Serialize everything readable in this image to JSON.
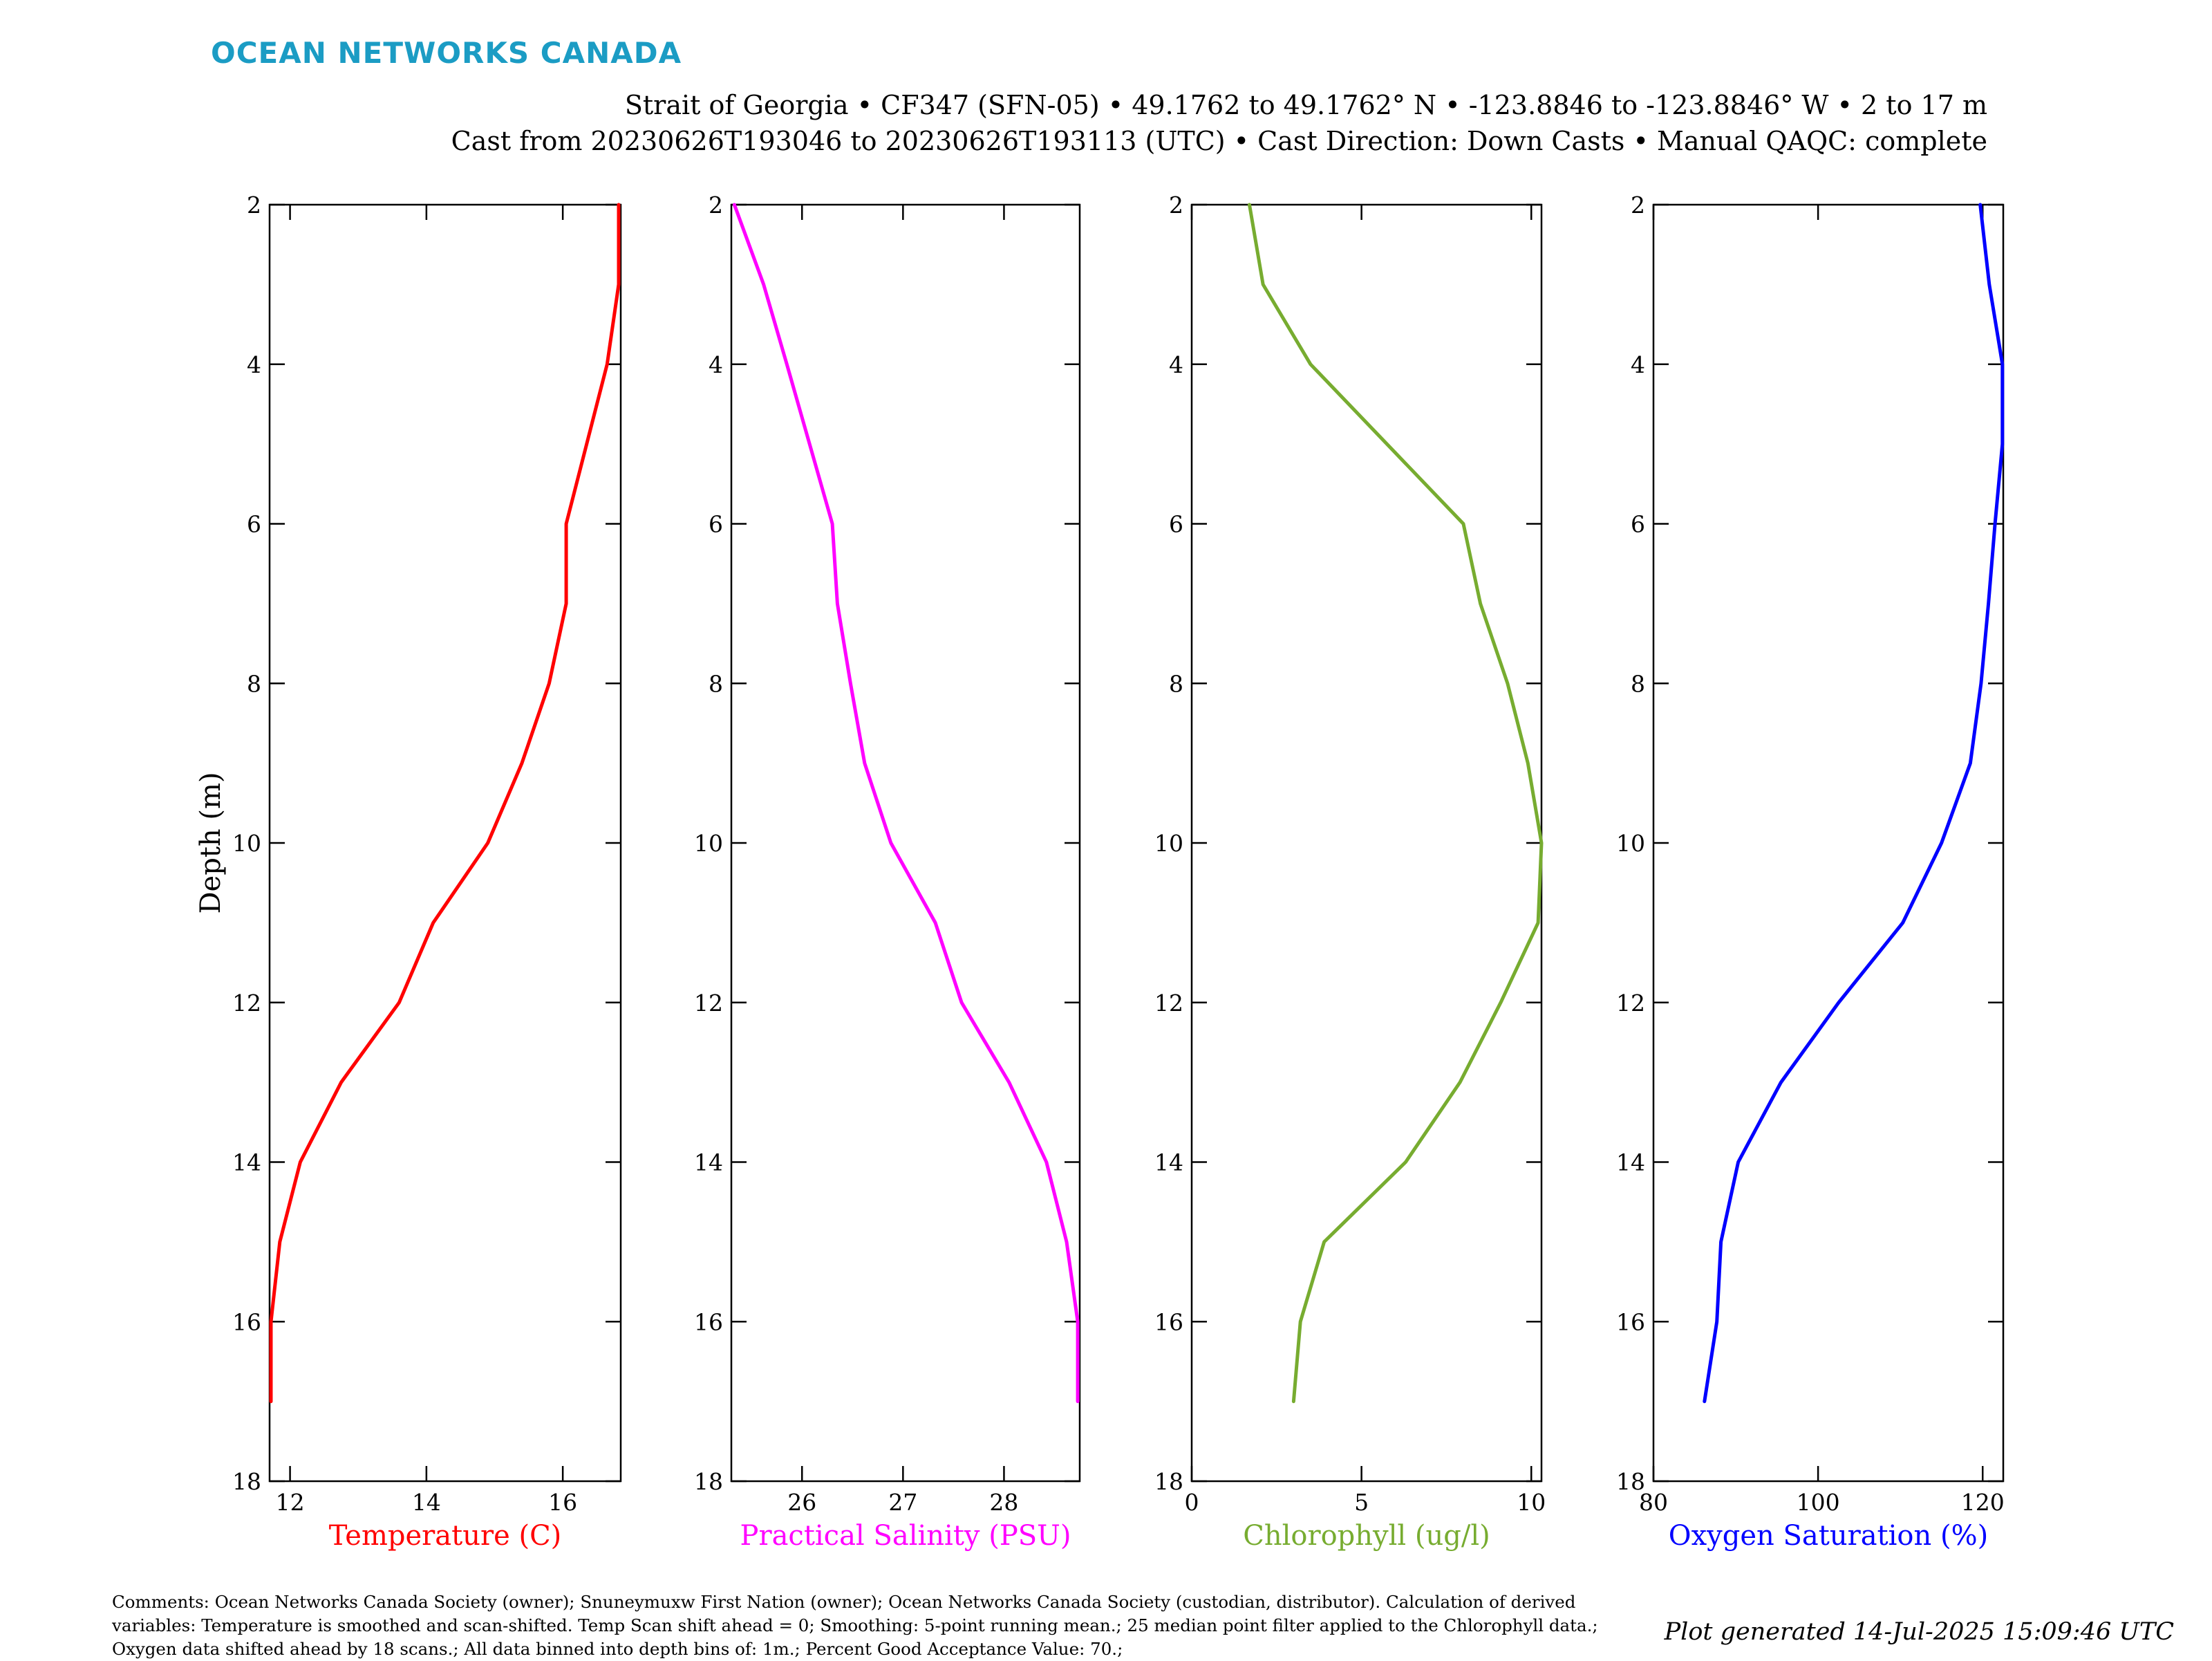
{
  "logo": "OCEAN NETWORKS CANADA",
  "title_line1": "Strait of Georgia • CF347 (SFN-05) • 49.1762 to 49.1762° N • -123.8846 to -123.8846° W • 2 to 17 m",
  "title_line2": "Cast from 20230626T193046 to 20230626T193113 (UTC) • Cast Direction: Down Casts • Manual QAQC: complete",
  "comments": "Comments: Ocean Networks Canada Society (owner); Snuneymuxw First Nation (owner); Ocean Networks Canada Society (custodian, distributor). Calculation of derived variables: Temperature is smoothed and scan-shifted. Temp Scan shift ahead = 0; Smoothing: 5-point running mean.; 25 median point filter applied to the Chlorophyll data.; Oxygen data shifted ahead by 18 scans.; All data binned into depth bins of: 1m.; Percent Good Acceptance Value: 70.;",
  "generated": "Plot generated 14-Jul-2025 15:09:46 UTC",
  "chart_data": [
    {
      "type": "line",
      "ylabel": "Depth (m)",
      "xlabel": "Temperature (C)",
      "color": "#ff0000",
      "xlim": [
        11.7,
        16.85
      ],
      "ylim": [
        2,
        18
      ],
      "y_reversed": true,
      "xticks": [
        12,
        14,
        16
      ],
      "yticks": [
        2,
        4,
        6,
        8,
        10,
        12,
        14,
        16,
        18
      ],
      "x": [
        16.82,
        16.82,
        16.65,
        16.05,
        16.05,
        15.8,
        15.4,
        14.9,
        14.1,
        13.6,
        12.75,
        12.15,
        11.85,
        11.72,
        11.72
      ],
      "y": [
        2,
        3,
        4,
        6,
        7,
        8,
        9,
        10,
        11,
        12,
        13,
        14,
        15,
        16,
        17
      ]
    },
    {
      "type": "line",
      "xlabel": "Practical Salinity (PSU)",
      "color": "#ff00ff",
      "xlim": [
        25.3,
        28.75
      ],
      "ylim": [
        2,
        18
      ],
      "y_reversed": true,
      "xticks": [
        26,
        27,
        28
      ],
      "yticks": [
        2,
        4,
        6,
        8,
        10,
        12,
        14,
        16,
        18
      ],
      "x": [
        25.33,
        25.62,
        25.85,
        26.3,
        26.35,
        26.48,
        26.62,
        26.88,
        27.32,
        27.58,
        28.05,
        28.42,
        28.62,
        28.73,
        28.73
      ],
      "y": [
        2,
        3,
        4,
        6,
        7,
        8,
        9,
        10,
        11,
        12,
        13,
        14,
        15,
        16,
        17
      ]
    },
    {
      "type": "line",
      "xlabel": "Chlorophyll (ug/l)",
      "color": "#77ac30",
      "xlim": [
        0,
        10.3
      ],
      "ylim": [
        2,
        18
      ],
      "y_reversed": true,
      "xticks": [
        0,
        5,
        10
      ],
      "yticks": [
        2,
        4,
        6,
        8,
        10,
        12,
        14,
        16,
        18
      ],
      "x": [
        1.7,
        2.1,
        3.5,
        8.0,
        8.5,
        9.3,
        9.9,
        10.3,
        10.2,
        9.1,
        7.9,
        6.3,
        3.9,
        3.2,
        3.0
      ],
      "y": [
        2,
        3,
        4,
        6,
        7,
        8,
        9,
        10,
        11,
        12,
        13,
        14,
        15,
        16,
        17
      ]
    },
    {
      "type": "line",
      "xlabel": "Oxygen Saturation (%)",
      "color": "#0000ff",
      "xlim": [
        80,
        122.5
      ],
      "ylim": [
        2,
        18
      ],
      "y_reversed": true,
      "xticks": [
        80,
        100,
        120
      ],
      "yticks": [
        2,
        4,
        6,
        8,
        10,
        12,
        14,
        16,
        18
      ],
      "x": [
        119.7,
        120.8,
        122.4,
        122.4,
        121.5,
        120.7,
        119.8,
        118.5,
        115.0,
        110.3,
        102.5,
        95.5,
        90.3,
        88.2,
        87.7,
        86.2
      ],
      "y": [
        2,
        3,
        4,
        5,
        6,
        7,
        8,
        9,
        10,
        11,
        12,
        13,
        14,
        15,
        16,
        17
      ]
    }
  ]
}
